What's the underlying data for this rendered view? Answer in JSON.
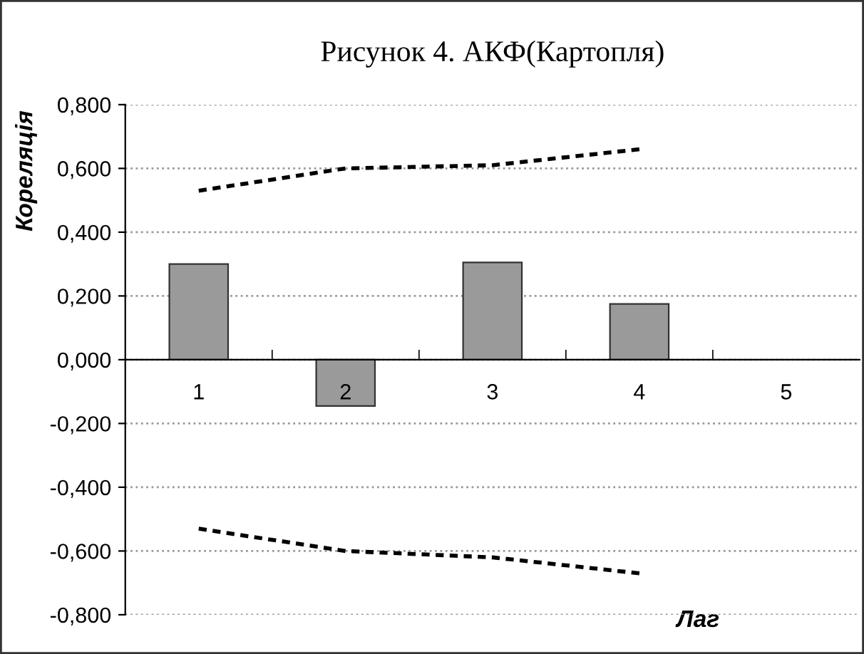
{
  "chart_data": {
    "type": "bar",
    "title": "Рисунок 4. АКФ(Картопля)",
    "xlabel": "Лаг",
    "ylabel": "Кореляція",
    "categories": [
      "1",
      "2",
      "3",
      "4",
      "5"
    ],
    "series": [
      {
        "color": "#9a9a9a",
        "values": [
          0.3,
          -0.145,
          0.305,
          0.175,
          null
        ]
      },
      {
        "type": "line",
        "color": "#000000",
        "line_style": "dashed",
        "values": [
          0.53,
          0.6,
          0.61,
          0.66,
          null
        ]
      },
      {
        "type": "line",
        "color": "#000000",
        "line_style": "dashed",
        "values": [
          -0.53,
          -0.6,
          -0.62,
          -0.67,
          null
        ]
      }
    ],
    "ylim": [
      -0.8,
      0.8
    ],
    "yticks": [
      {
        "value": -0.8,
        "label": "-0,800"
      },
      {
        "value": -0.6,
        "label": "-0,600"
      },
      {
        "value": -0.4,
        "label": "-0,400"
      },
      {
        "value": -0.2,
        "label": "-0,200"
      },
      {
        "value": 0,
        "label": "0,000"
      },
      {
        "value": 0.2,
        "label": "0,200"
      },
      {
        "value": 0.4,
        "label": "0,400"
      },
      {
        "value": 0.6,
        "label": "0,600"
      },
      {
        "value": 0.8,
        "label": "0,800"
      }
    ],
    "grid": "y",
    "legend": false
  }
}
